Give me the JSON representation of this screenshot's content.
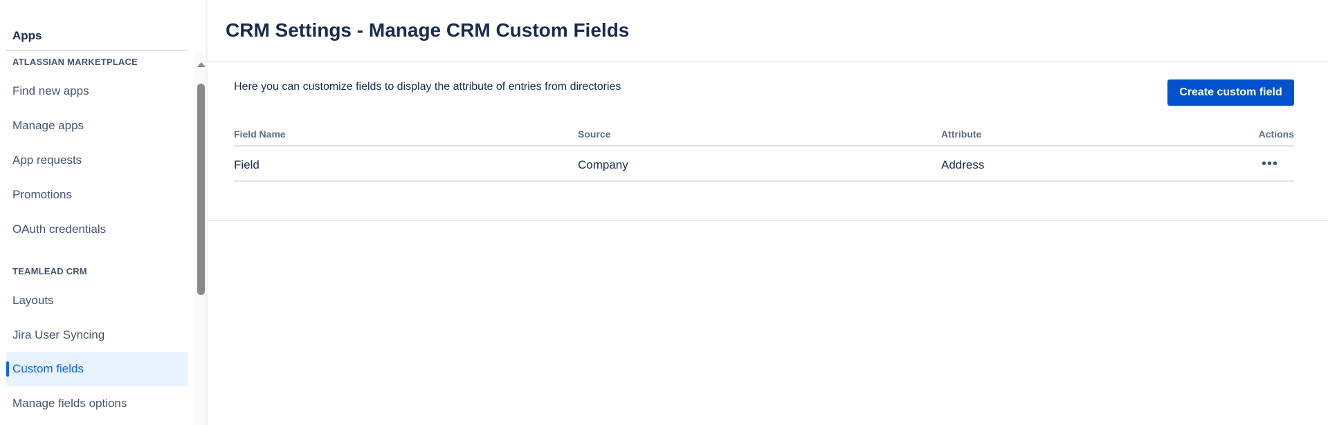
{
  "sidebar": {
    "title": "Apps",
    "sections": [
      {
        "heading": "ATLASSIAN MARKETPLACE",
        "items": [
          "Find new apps",
          "Manage apps",
          "App requests",
          "Promotions",
          "OAuth credentials"
        ]
      },
      {
        "heading": "TEAMLEAD CRM",
        "items": [
          "Layouts",
          "Jira User Syncing",
          "Custom fields",
          "Manage fields options"
        ]
      }
    ],
    "active_item": "Custom fields"
  },
  "main": {
    "title": "CRM Settings - Manage CRM Custom Fields",
    "description": "Here you can customize fields to display the attribute of entries from directories",
    "create_button": "Create custom field",
    "table": {
      "columns": [
        "Field Name",
        "Source",
        "Attribute",
        "Actions"
      ],
      "rows": [
        {
          "field_name": "Field",
          "source": "Company",
          "attribute": "Address",
          "actions_icon": "more-horizontal-icon"
        }
      ]
    }
  },
  "colors": {
    "accent": "#0052cc",
    "active_bg": "#e9f2ff",
    "active_text": "#0c66e4",
    "text": "#172b4d"
  }
}
